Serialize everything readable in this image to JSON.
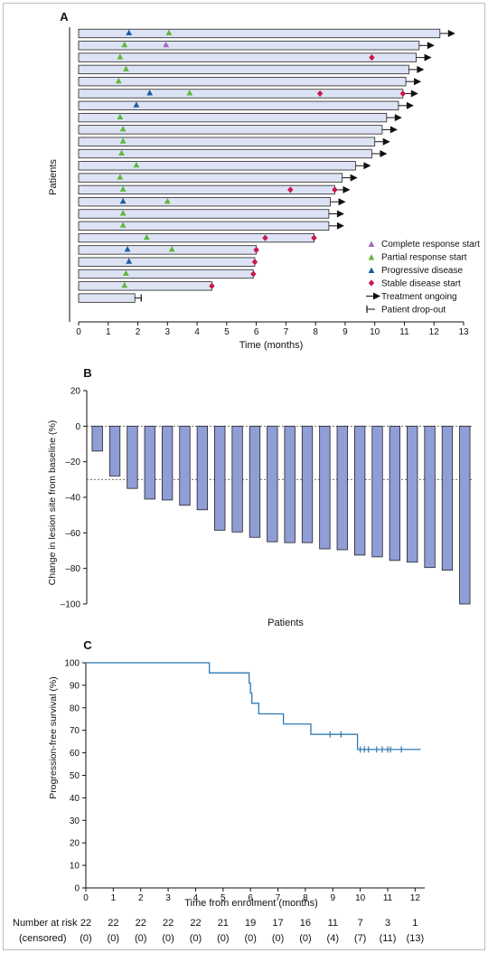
{
  "chart_data": [
    {
      "panel": "A",
      "type": "bar",
      "orientation": "horizontal",
      "ylabel": "Patients",
      "xlabel": "Time (months)",
      "xlim": [
        0,
        13
      ],
      "xticks": [
        "0",
        "1",
        "2",
        "3",
        "4",
        "5",
        "6",
        "7",
        "8",
        "9",
        "10",
        "11",
        "12",
        "13"
      ],
      "legend": {
        "placement": "bottom-right",
        "items": [
          {
            "key": "cr",
            "label": "Complete response start",
            "color": "#a468c6",
            "symbol": "triangle"
          },
          {
            "key": "pr",
            "label": "Partial response start",
            "color": "#5fb83f",
            "symbol": "triangle"
          },
          {
            "key": "pd",
            "label": "Progressive disease",
            "color": "#1a5ea3",
            "symbol": "triangle"
          },
          {
            "key": "sd",
            "label": "Stable disease start",
            "color": "#c8194d",
            "symbol": "diamond"
          },
          {
            "key": "ongoing",
            "label": "Treatment ongoing",
            "color": "#111111",
            "symbol": "arrow"
          },
          {
            "key": "dropout",
            "label": "Patient drop-out",
            "color": "#111111",
            "symbol": "bar"
          }
        ]
      },
      "patients": [
        {
          "duration": 12.2,
          "end": "ongoing",
          "events": [
            {
              "t": 1.7,
              "type": "pd"
            },
            {
              "t": 3.05,
              "type": "pr"
            }
          ]
        },
        {
          "duration": 11.5,
          "end": "ongoing",
          "events": [
            {
              "t": 1.55,
              "type": "pr"
            },
            {
              "t": 2.95,
              "type": "cr"
            }
          ]
        },
        {
          "duration": 11.4,
          "end": "ongoing",
          "events": [
            {
              "t": 1.4,
              "type": "pr"
            },
            {
              "t": 9.9,
              "type": "sd"
            }
          ]
        },
        {
          "duration": 11.15,
          "end": "ongoing",
          "events": [
            {
              "t": 1.6,
              "type": "pr"
            }
          ]
        },
        {
          "duration": 11.05,
          "end": "ongoing",
          "events": [
            {
              "t": 1.35,
              "type": "pr"
            }
          ]
        },
        {
          "duration": 10.95,
          "end": "ongoing",
          "events": [
            {
              "t": 2.4,
              "type": "pd"
            },
            {
              "t": 3.75,
              "type": "pr"
            },
            {
              "t": 8.15,
              "type": "sd"
            },
            {
              "t": 10.95,
              "type": "sd"
            }
          ]
        },
        {
          "duration": 10.8,
          "end": "ongoing",
          "events": [
            {
              "t": 1.95,
              "type": "pd"
            }
          ]
        },
        {
          "duration": 10.4,
          "end": "ongoing",
          "events": [
            {
              "t": 1.4,
              "type": "pr"
            }
          ]
        },
        {
          "duration": 10.25,
          "end": "ongoing",
          "events": [
            {
              "t": 1.5,
              "type": "pr"
            }
          ]
        },
        {
          "duration": 10.0,
          "end": "ongoing",
          "events": [
            {
              "t": 1.5,
              "type": "pr"
            }
          ]
        },
        {
          "duration": 9.9,
          "end": "ongoing",
          "events": [
            {
              "t": 1.45,
              "type": "pr"
            }
          ]
        },
        {
          "duration": 9.35,
          "end": "ongoing",
          "events": [
            {
              "t": 1.95,
              "type": "pr"
            }
          ]
        },
        {
          "duration": 8.9,
          "end": "ongoing",
          "events": [
            {
              "t": 1.4,
              "type": "pr"
            }
          ]
        },
        {
          "duration": 8.65,
          "end": "ongoing",
          "events": [
            {
              "t": 1.5,
              "type": "pr"
            },
            {
              "t": 7.15,
              "type": "sd"
            },
            {
              "t": 8.65,
              "type": "sd"
            }
          ]
        },
        {
          "duration": 8.5,
          "end": "ongoing",
          "events": [
            {
              "t": 1.5,
              "type": "pd"
            },
            {
              "t": 3.0,
              "type": "pr"
            }
          ]
        },
        {
          "duration": 8.45,
          "end": "ongoing",
          "events": [
            {
              "t": 1.5,
              "type": "pr"
            }
          ]
        },
        {
          "duration": 8.45,
          "end": "ongoing",
          "events": [
            {
              "t": 1.5,
              "type": "pr"
            }
          ]
        },
        {
          "duration": 7.95,
          "end": "none",
          "events": [
            {
              "t": 2.3,
              "type": "pr"
            },
            {
              "t": 6.3,
              "type": "sd"
            },
            {
              "t": 7.95,
              "type": "sd"
            }
          ]
        },
        {
          "duration": 6.0,
          "end": "none",
          "events": [
            {
              "t": 1.65,
              "type": "pd"
            },
            {
              "t": 3.15,
              "type": "pr"
            },
            {
              "t": 6.0,
              "type": "sd"
            }
          ]
        },
        {
          "duration": 5.95,
          "end": "none",
          "events": [
            {
              "t": 1.7,
              "type": "pd"
            },
            {
              "t": 5.95,
              "type": "sd"
            }
          ]
        },
        {
          "duration": 5.9,
          "end": "none",
          "events": [
            {
              "t": 1.6,
              "type": "pr"
            },
            {
              "t": 5.9,
              "type": "sd"
            }
          ]
        },
        {
          "duration": 4.5,
          "end": "none",
          "events": [
            {
              "t": 1.55,
              "type": "pr"
            },
            {
              "t": 4.5,
              "type": "sd"
            }
          ]
        },
        {
          "duration": 1.9,
          "end": "dropout",
          "events": []
        }
      ]
    },
    {
      "panel": "B",
      "type": "bar",
      "xlabel": "Patients",
      "ylabel": "Change in lesion site from baseline (%)",
      "ylim": [
        -100,
        20
      ],
      "yticks": [
        "20",
        "0",
        "–20",
        "–40",
        "–60",
        "–80",
        "–100"
      ],
      "reference_lines": [
        0,
        -30
      ],
      "color": "#8f9ed6",
      "values": [
        -14,
        -28,
        -35,
        -41,
        -41.5,
        -44.5,
        -47,
        -58.5,
        -59.5,
        -62.5,
        -65,
        -65.5,
        -65.5,
        -69,
        -69.5,
        -72.5,
        -73.5,
        -75.5,
        -76.5,
        -79.5,
        -81,
        -100
      ]
    },
    {
      "panel": "C",
      "type": "line",
      "xlabel": "Time from enrolment (months)",
      "ylabel": "Progression-free survival (%)",
      "xlim": [
        0,
        12.5
      ],
      "ylim": [
        0,
        100
      ],
      "xticks": [
        "0",
        "1",
        "2",
        "3",
        "4",
        "5",
        "6",
        "7",
        "8",
        "9",
        "10",
        "11",
        "12"
      ],
      "yticks": [
        "0",
        "10",
        "20",
        "30",
        "40",
        "50",
        "60",
        "70",
        "80",
        "90",
        "100"
      ],
      "color": "#2f79b3",
      "steps": [
        [
          0,
          100
        ],
        [
          4.5,
          95.5
        ],
        [
          5.95,
          91
        ],
        [
          6.0,
          86.5
        ],
        [
          6.05,
          82
        ],
        [
          6.3,
          77.3
        ],
        [
          7.2,
          72.8
        ],
        [
          8.2,
          68.2
        ],
        [
          9.9,
          61.5
        ],
        [
          12.2,
          61.5
        ]
      ],
      "censor_x": [
        8.9,
        9.3,
        10.0,
        10.15,
        10.3,
        10.6,
        10.8,
        11.0,
        11.1,
        11.5
      ],
      "risk_table": {
        "label_top": "Number at risk",
        "label_bottom": "(censored)",
        "at_risk": [
          "22",
          "22",
          "22",
          "22",
          "22",
          "21",
          "19",
          "17",
          "16",
          "11",
          "7",
          "3",
          "1"
        ],
        "censored": [
          "(0)",
          "(0)",
          "(0)",
          "(0)",
          "(0)",
          "(0)",
          "(0)",
          "(0)",
          "(0)",
          "(4)",
          "(7)",
          "(11)",
          "(13)"
        ]
      }
    }
  ],
  "panel_labels": [
    "A",
    "B",
    "C"
  ]
}
